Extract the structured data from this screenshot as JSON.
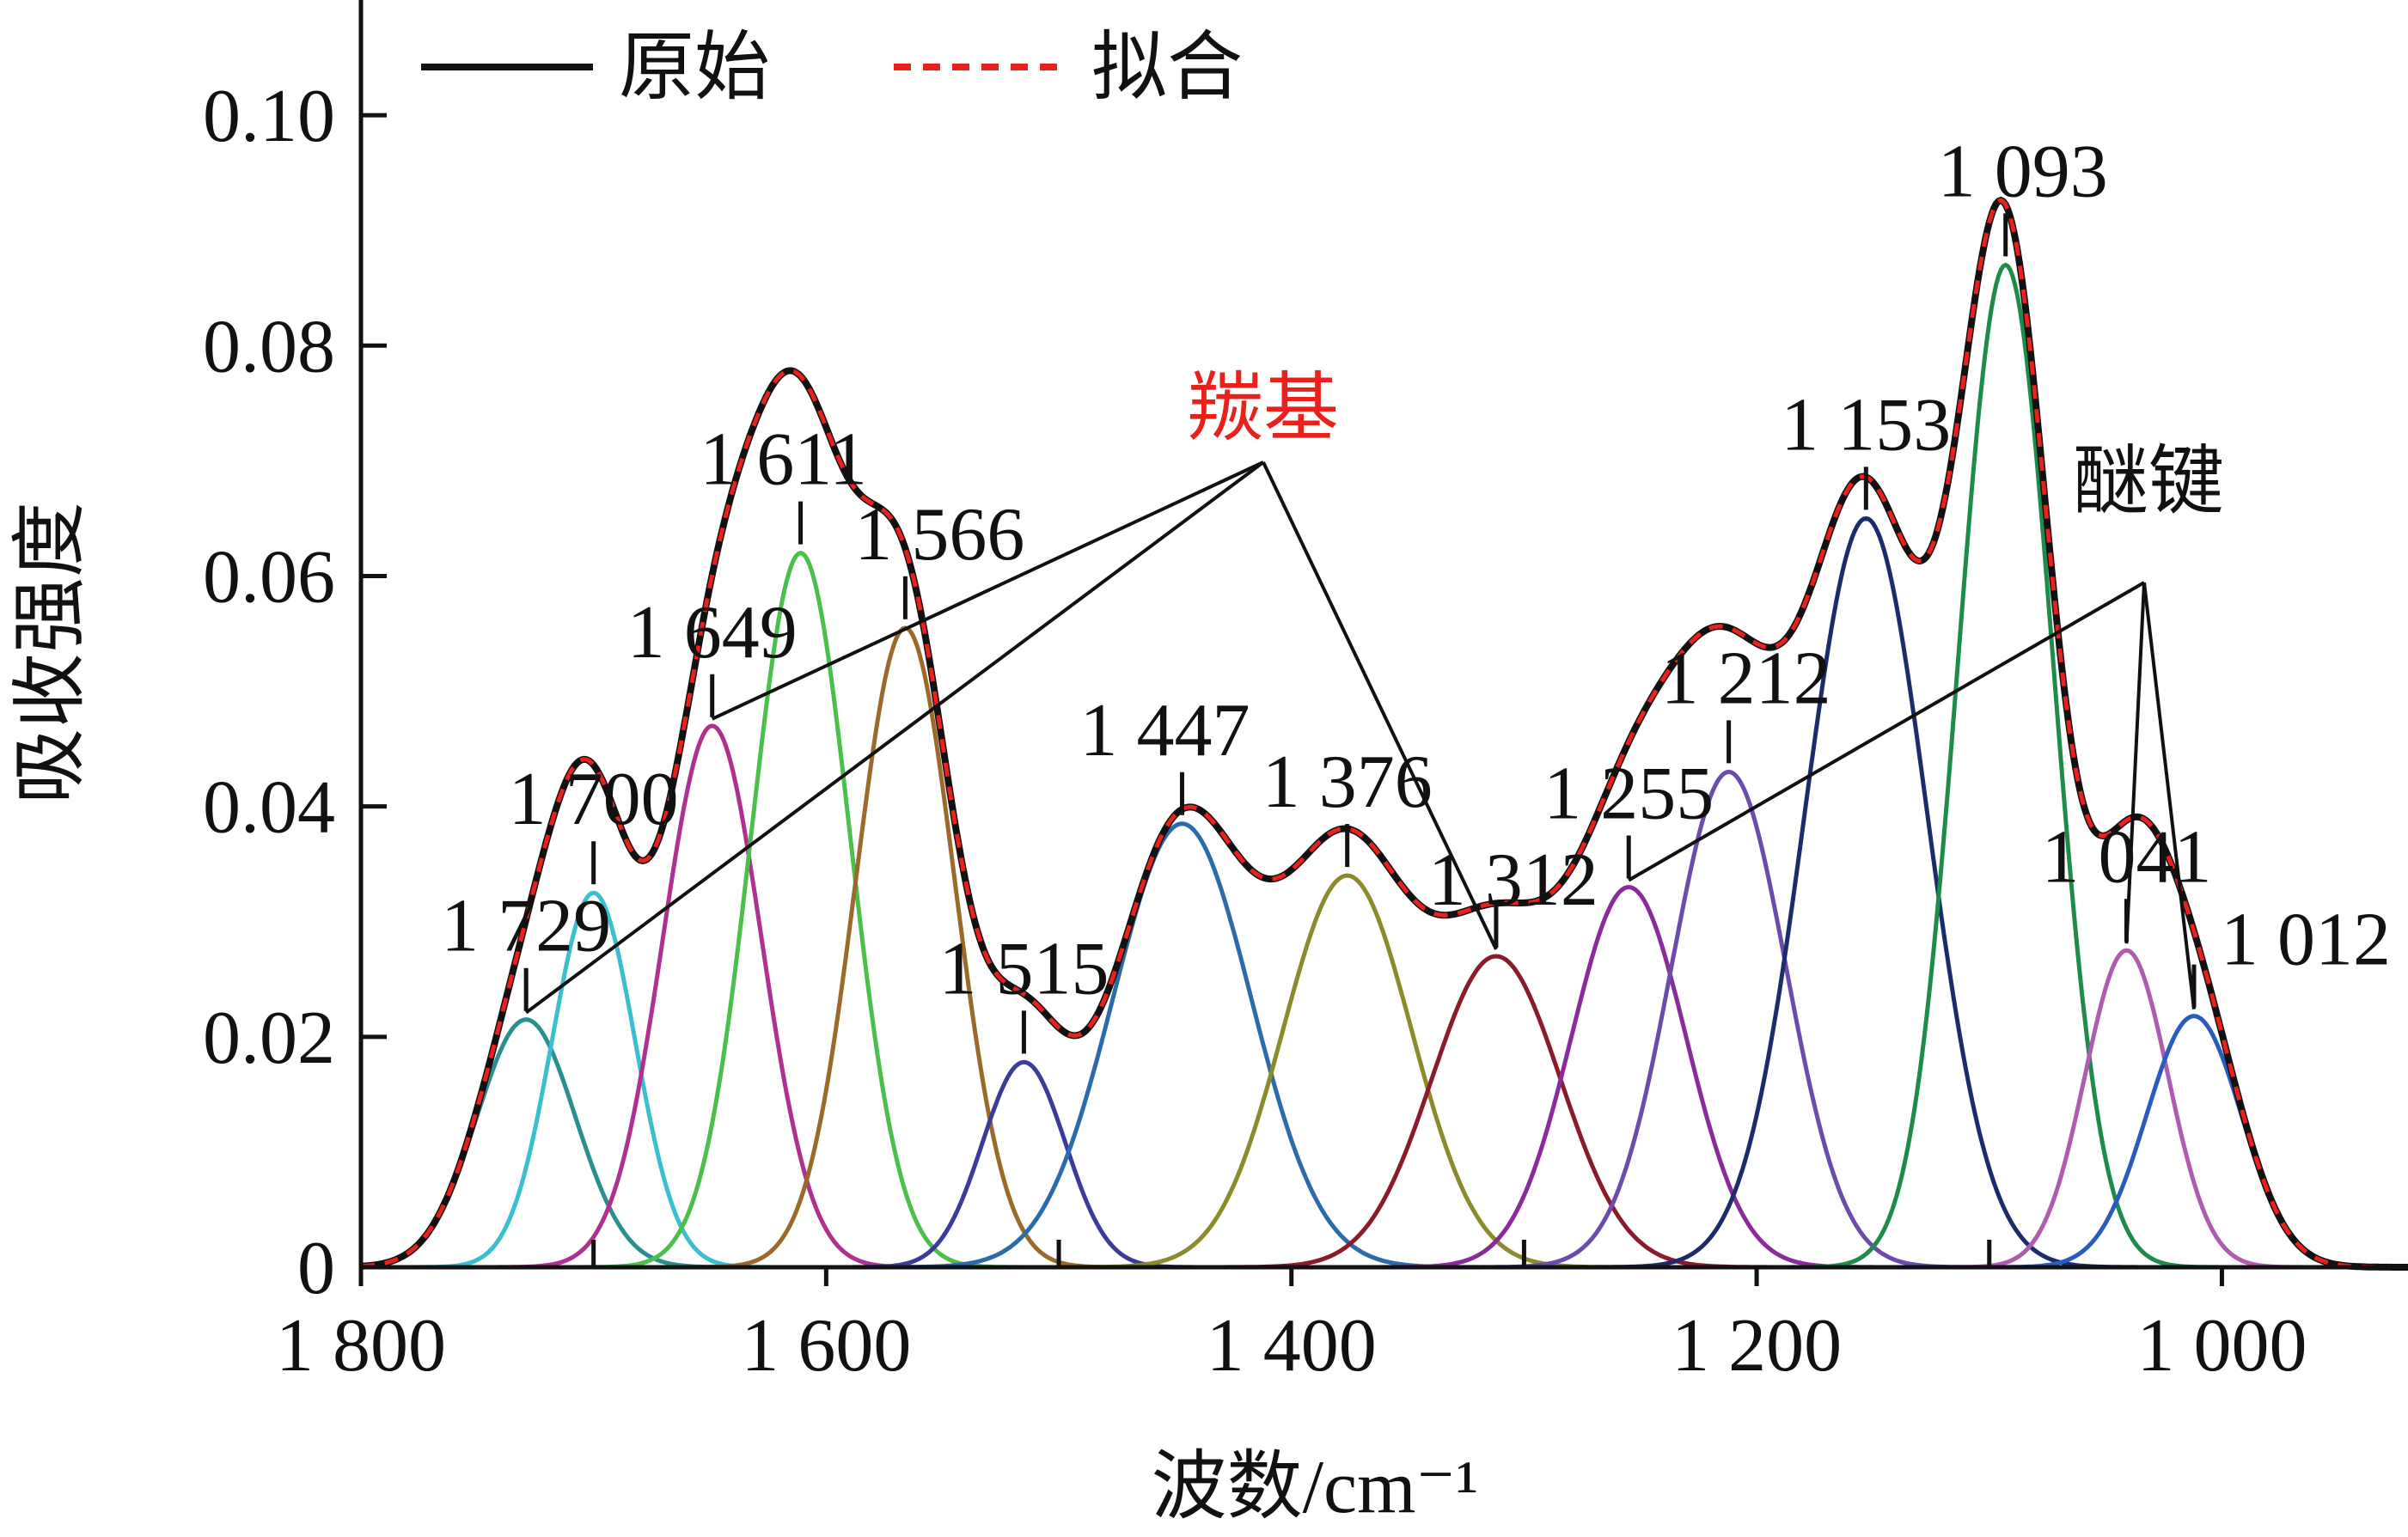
{
  "chart_data": {
    "type": "line",
    "title": "",
    "xlabel": "波数/cm⁻¹",
    "ylabel": "吸收强度",
    "xlim": [
      1800,
      920
    ],
    "x_reversed": true,
    "ylim": [
      0,
      0.11
    ],
    "grid": false,
    "legend_position": "top-left",
    "x_ticks": [
      {
        "value": 1800,
        "label": "1 800"
      },
      {
        "value": 1600,
        "label": "1 600"
      },
      {
        "value": 1400,
        "label": "1 400"
      },
      {
        "value": 1200,
        "label": "1 200"
      },
      {
        "value": 1000,
        "label": "1 000"
      }
    ],
    "y_ticks": [
      {
        "value": 0,
        "label": "0"
      },
      {
        "value": 0.02,
        "label": "0.02"
      },
      {
        "value": 0.04,
        "label": "0.04"
      },
      {
        "value": 0.06,
        "label": "0.06"
      },
      {
        "value": 0.08,
        "label": "0.08"
      },
      {
        "value": 0.1,
        "label": "0.10"
      }
    ],
    "series": [
      {
        "name": "原始",
        "color": "#111111",
        "style": "solid"
      },
      {
        "name": "拟合",
        "color": "#e8211d",
        "style": "dashed"
      }
    ],
    "fitted_peaks": [
      {
        "label": "1 729",
        "center": 1729,
        "height": 0.0215,
        "fwhm": 50,
        "color": "#2b8f8f"
      },
      {
        "label": "1 700",
        "center": 1700,
        "height": 0.0325,
        "fwhm": 42,
        "color": "#3bbfcf"
      },
      {
        "label": "1 649",
        "center": 1649,
        "height": 0.047,
        "fwhm": 50,
        "color": "#b0308f"
      },
      {
        "label": "1 611",
        "center": 1611,
        "height": 0.062,
        "fwhm": 50,
        "color": "#4bbf4b"
      },
      {
        "label": "1 566",
        "center": 1566,
        "height": 0.0555,
        "fwhm": 50,
        "color": "#9b6a2b"
      },
      {
        "label": "1 515",
        "center": 1515,
        "height": 0.0178,
        "fwhm": 42,
        "color": "#3b3b9b"
      },
      {
        "label": "1 447",
        "center": 1447,
        "height": 0.0385,
        "fwhm": 70,
        "color": "#2b6bab"
      },
      {
        "label": "1 376",
        "center": 1376,
        "height": 0.034,
        "fwhm": 65,
        "color": "#8b8b2b"
      },
      {
        "label": "1 312",
        "center": 1312,
        "height": 0.027,
        "fwhm": 65,
        "color": "#8b1b2b"
      },
      {
        "label": "1 255",
        "center": 1255,
        "height": 0.033,
        "fwhm": 58,
        "color": "#8b2b9b"
      },
      {
        "label": "1 212",
        "center": 1212,
        "height": 0.043,
        "fwhm": 58,
        "color": "#6b4bab"
      },
      {
        "label": "1 153",
        "center": 1153,
        "height": 0.065,
        "fwhm": 62,
        "color": "#1b2b6b"
      },
      {
        "label": "1 093",
        "center": 1093,
        "height": 0.087,
        "fwhm": 48,
        "color": "#1f8b4b"
      },
      {
        "label": "1 041",
        "center": 1041,
        "height": 0.0275,
        "fwhm": 42,
        "color": "#b05bb0"
      },
      {
        "label": "1 012",
        "center": 1012,
        "height": 0.0218,
        "fwhm": 48,
        "color": "#2b5bbf"
      }
    ],
    "annotations": [
      {
        "text": "羰基",
        "color": "#e8211d",
        "points_to": [
          "1 729",
          "1 649",
          "1 312"
        ]
      },
      {
        "text": "醚键",
        "color": "#111111",
        "points_to": [
          "1 255",
          "1 041",
          "1 012"
        ]
      }
    ]
  }
}
